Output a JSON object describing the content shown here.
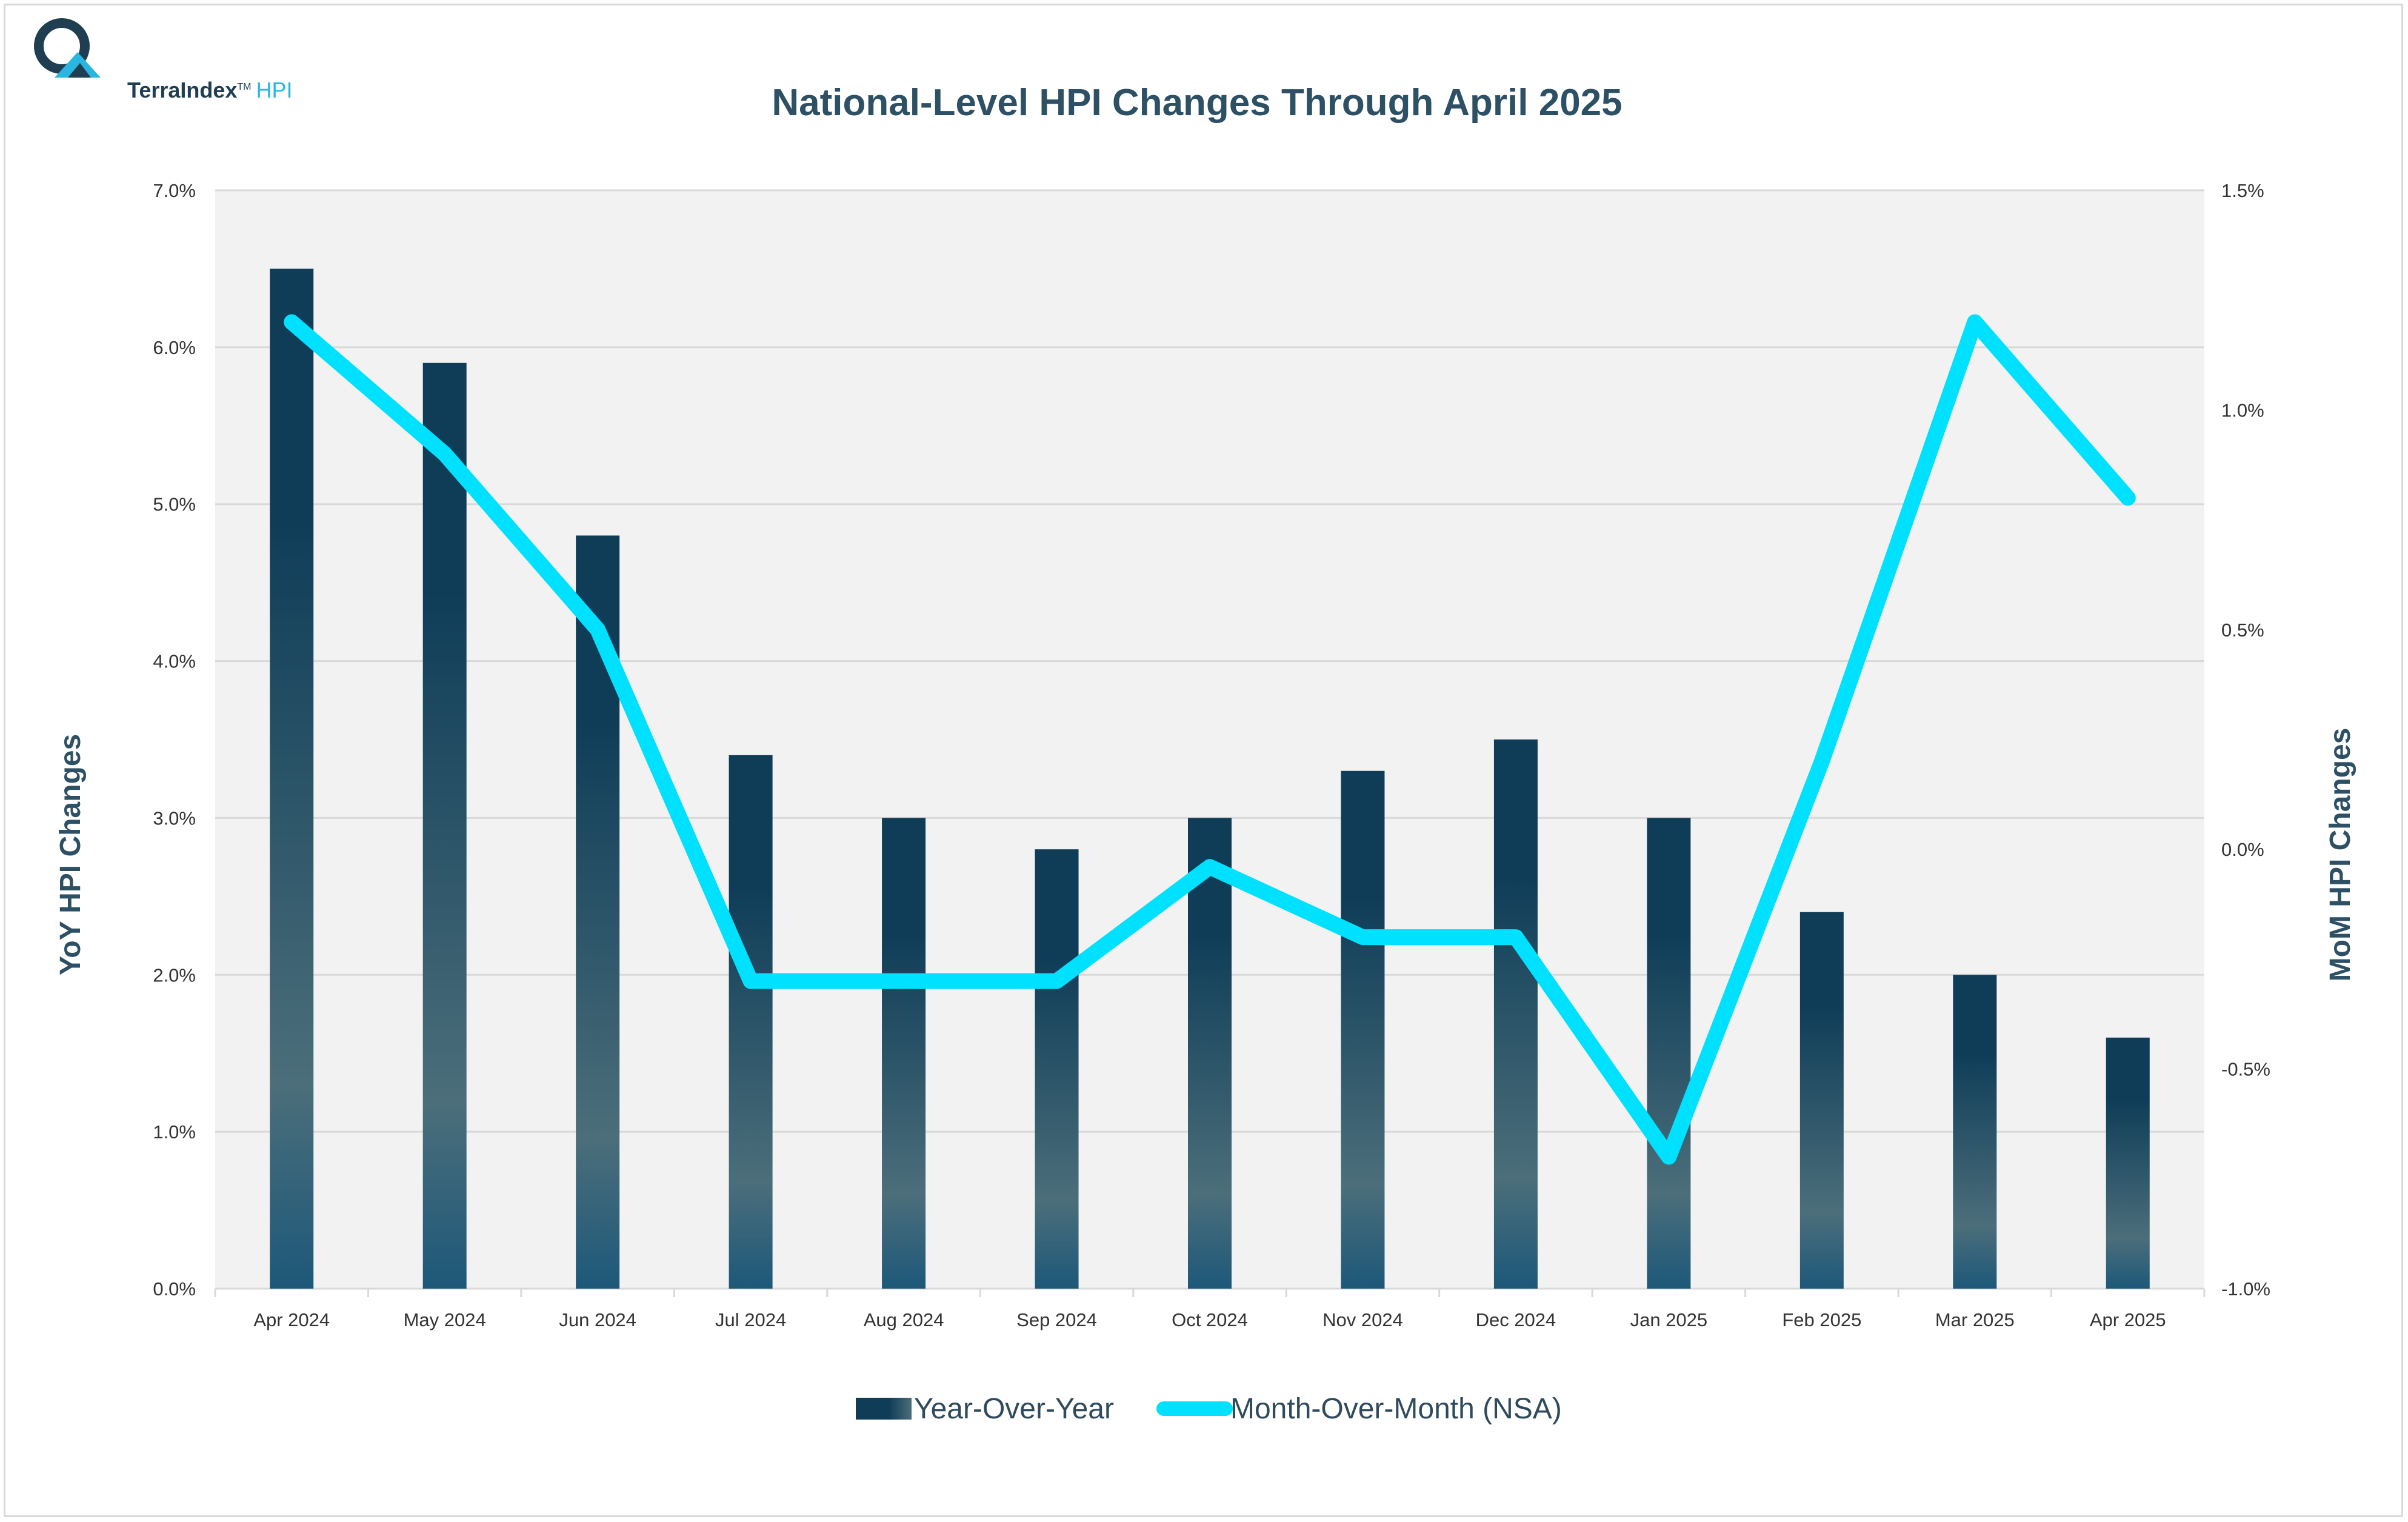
{
  "logo": {
    "name": "TerraIndex",
    "tm": "TM",
    "suffix": "HPI"
  },
  "colors": {
    "bar_top": "#0f3d58",
    "bar_mid": "#4b6e7a",
    "bar_bottom": "#1d5879",
    "line": "#00e0ff",
    "plot_bg": "#f2f2f2",
    "grid": "#d9d9d9",
    "title": "#2d5065"
  },
  "chart_data": {
    "type": "bar+line",
    "title": "National-Level HPI Changes Through April 2025",
    "categories": [
      "Apr 2024",
      "May 2024",
      "Jun 2024",
      "Jul 2024",
      "Aug 2024",
      "Sep 2024",
      "Oct 2024",
      "Nov 2024",
      "Dec 2024",
      "Jan 2025",
      "Feb 2025",
      "Mar 2025",
      "Apr 2025"
    ],
    "y_left": {
      "label": "YoY HPI Changes",
      "range": [
        0,
        7
      ],
      "ticks": [
        "0.0%",
        "1.0%",
        "2.0%",
        "3.0%",
        "4.0%",
        "5.0%",
        "6.0%",
        "7.0%"
      ]
    },
    "y_right": {
      "label": "MoM HPI Changes",
      "range": [
        -1,
        1.5
      ],
      "ticks": [
        "-1.0%",
        "-0.5%",
        "0.0%",
        "0.5%",
        "1.0%",
        "1.5%"
      ]
    },
    "series": [
      {
        "name": "Year-Over-Year",
        "type": "bar",
        "axis": "left",
        "values": [
          6.5,
          5.9,
          4.8,
          3.4,
          3.0,
          2.8,
          3.0,
          3.3,
          3.5,
          3.0,
          2.4,
          2.0,
          1.6
        ]
      },
      {
        "name": "Month-Over-Month (NSA)",
        "type": "line",
        "axis": "right",
        "values": [
          1.2,
          0.9,
          0.5,
          -0.3,
          -0.3,
          -0.3,
          -0.04,
          -0.2,
          -0.2,
          -0.7,
          0.2,
          1.2,
          0.8
        ]
      }
    ],
    "grid": true,
    "legend": "bottom-center"
  }
}
